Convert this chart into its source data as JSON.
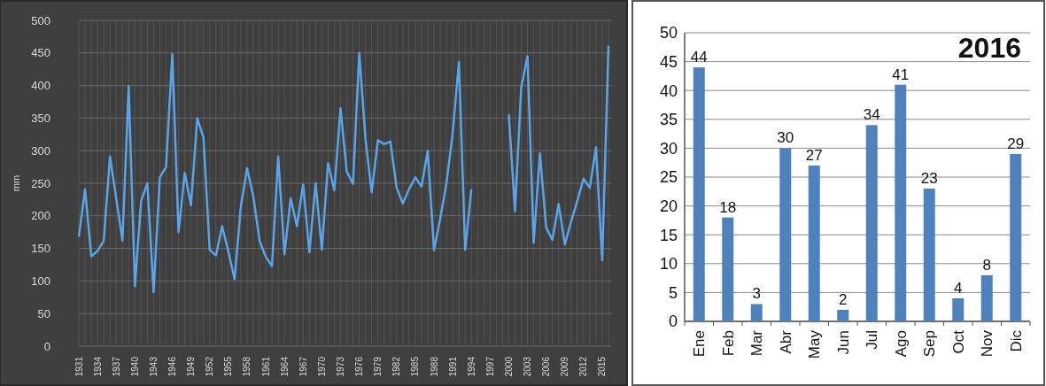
{
  "chart_data": [
    {
      "type": "line",
      "ylabel": "mm",
      "color": "#5aa5ea",
      "ylim": [
        0,
        500
      ],
      "yticks": [
        0,
        50,
        100,
        150,
        200,
        250,
        300,
        350,
        400,
        450,
        500
      ],
      "grid": true,
      "categories": [
        "1931",
        null,
        null,
        "1934",
        null,
        null,
        "1937",
        null,
        null,
        "1940",
        null,
        null,
        "1943",
        null,
        null,
        "1946",
        null,
        null,
        "1949",
        null,
        null,
        "1952",
        null,
        null,
        "1955",
        null,
        null,
        "1958",
        null,
        null,
        "1961",
        null,
        null,
        "1964",
        null,
        null,
        "1967",
        null,
        null,
        "1970",
        null,
        null,
        "1973",
        null,
        null,
        "1976",
        null,
        null,
        "1979",
        null,
        null,
        "1982",
        null,
        null,
        "1985",
        null,
        null,
        "1988",
        null,
        null,
        "1991",
        null,
        null,
        "1994",
        null,
        null,
        "1997",
        null,
        null,
        "2000",
        null,
        null,
        "2003",
        null,
        null,
        "2006",
        null,
        null,
        "2009",
        null,
        null,
        "2012",
        null,
        null,
        "2015",
        null
      ],
      "values": [
        168,
        241,
        138,
        146,
        162,
        291,
        227,
        162,
        399,
        92,
        223,
        250,
        83,
        259,
        275,
        448,
        175,
        266,
        216,
        350,
        320,
        148,
        139,
        184,
        145,
        103,
        214,
        273,
        230,
        162,
        137,
        123,
        291,
        141,
        227,
        184,
        248,
        144,
        250,
        148,
        281,
        239,
        365,
        268,
        249,
        450,
        318,
        236,
        316,
        310,
        314,
        243,
        219,
        241,
        259,
        245,
        300,
        147,
        196,
        250,
        327,
        436,
        148,
        241,
        null,
        null,
        null,
        null,
        null,
        356,
        207,
        397,
        445,
        159,
        296,
        182,
        163,
        218,
        156,
        191,
        223,
        257,
        243,
        305,
        132,
        461
      ]
    },
    {
      "type": "bar",
      "title": "2016",
      "color": "#4f81bd",
      "ylim": [
        0,
        50
      ],
      "yticks": [
        0,
        5,
        10,
        15,
        20,
        25,
        30,
        35,
        40,
        45,
        50
      ],
      "grid": "y",
      "data_labels": true,
      "categories": [
        "Ene",
        "Feb",
        "Mar",
        "Abr",
        "May",
        "Jun",
        "Jul",
        "Ago",
        "Sep",
        "Oct",
        "Nov",
        "Dic"
      ],
      "values": [
        44,
        18,
        3,
        30,
        27,
        2,
        34,
        41,
        23,
        4,
        8,
        29
      ]
    }
  ]
}
